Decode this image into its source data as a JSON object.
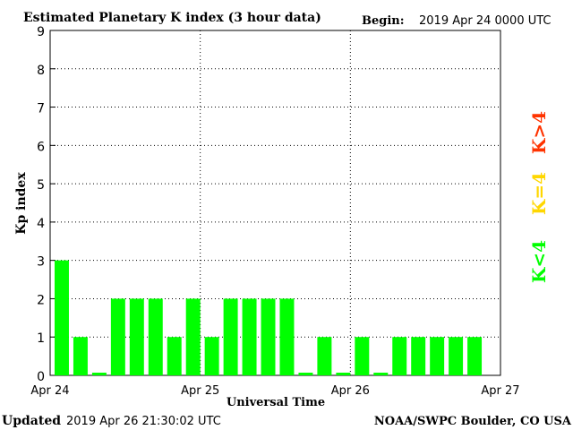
{
  "header": {
    "title": "Estimated Planetary K index (3 hour data)",
    "begin_label": "Begin:",
    "begin_value": "2019 Apr 24 0000 UTC"
  },
  "footer": {
    "updated_label": "Updated",
    "updated_value": "2019 Apr 26 21:30:02 UTC",
    "credit": "NOAA/SWPC Boulder, CO USA"
  },
  "legend": {
    "low": "K<4",
    "mid": "K=4",
    "high": "K>4",
    "colors": {
      "low": "#00ff00",
      "mid": "#ffd700",
      "high": "#ff3300"
    }
  },
  "chart_data": {
    "type": "bar",
    "xlabel": "Universal Time",
    "ylabel": "Kp index",
    "ylim": [
      0,
      9
    ],
    "yticks": [
      "0",
      "1",
      "2",
      "3",
      "4",
      "5",
      "6",
      "7",
      "8",
      "9"
    ],
    "xticks": [
      "Apr 24",
      "Apr 25",
      "Apr 26",
      "Apr 27"
    ],
    "bar_color": "#00ff00",
    "grid": "dotted",
    "values": [
      3,
      1,
      0,
      2,
      2,
      2,
      1,
      2,
      1,
      2,
      2,
      2,
      2,
      0,
      1,
      0,
      1,
      0,
      1,
      1,
      1,
      1,
      1
    ]
  }
}
